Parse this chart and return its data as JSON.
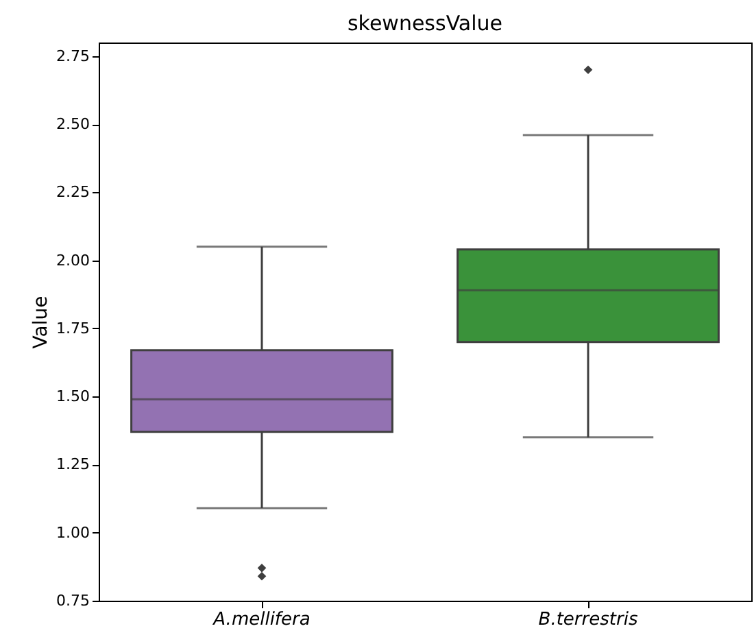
{
  "chart_data": {
    "type": "box",
    "title": "skewnessValue",
    "ylabel": "Value",
    "categories": [
      "A.mellifera",
      "B.terrestris"
    ],
    "colors": [
      "#9372b2",
      "#3a923a"
    ],
    "boxes": [
      {
        "low": 1.09,
        "q1": 1.37,
        "median": 1.49,
        "q3": 1.67,
        "high": 2.05,
        "outliers": [
          0.87,
          0.84
        ]
      },
      {
        "low": 1.35,
        "q1": 1.7,
        "median": 1.89,
        "q3": 2.04,
        "high": 2.46,
        "outliers": [
          2.7
        ]
      }
    ],
    "ylim": [
      0.75,
      2.8
    ],
    "yticks": [
      0.75,
      {
        "value": 1,
        "label": "1.00"
      },
      1.25,
      {
        "value": 1.5,
        "label": "1.50"
      },
      1.75,
      {
        "value": 2,
        "label": "2.00"
      },
      2.25,
      {
        "value": 2.5,
        "label": "2.50"
      },
      2.75
    ],
    "marker": "diamond"
  }
}
